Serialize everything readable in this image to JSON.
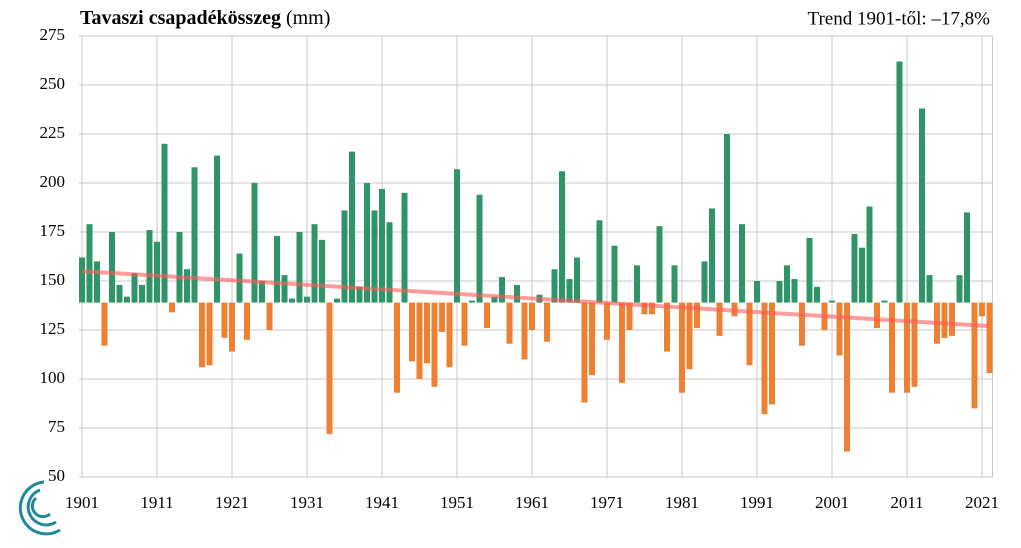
{
  "chart_data": {
    "type": "bar",
    "title": "Tavaszi csapadékösszeg",
    "title_unit": "(mm)",
    "annotation": "Trend 1901-től: –17,8%",
    "x": [
      1901,
      1902,
      1903,
      1904,
      1905,
      1906,
      1907,
      1908,
      1909,
      1910,
      1911,
      1912,
      1913,
      1914,
      1915,
      1916,
      1917,
      1918,
      1919,
      1920,
      1921,
      1922,
      1923,
      1924,
      1925,
      1926,
      1927,
      1928,
      1929,
      1930,
      1931,
      1932,
      1933,
      1934,
      1935,
      1936,
      1937,
      1938,
      1939,
      1940,
      1941,
      1942,
      1943,
      1944,
      1945,
      1946,
      1947,
      1948,
      1949,
      1950,
      1951,
      1952,
      1953,
      1954,
      1955,
      1956,
      1957,
      1958,
      1959,
      1960,
      1961,
      1962,
      1963,
      1964,
      1965,
      1966,
      1967,
      1968,
      1969,
      1970,
      1971,
      1972,
      1973,
      1974,
      1975,
      1976,
      1977,
      1978,
      1979,
      1980,
      1981,
      1982,
      1983,
      1984,
      1985,
      1986,
      1987,
      1988,
      1989,
      1990,
      1991,
      1992,
      1993,
      1994,
      1995,
      1996,
      1997,
      1998,
      1999,
      2000,
      2001,
      2002,
      2003,
      2004,
      2005,
      2006,
      2007,
      2008,
      2009,
      2010,
      2011,
      2012,
      2013,
      2014,
      2015,
      2016,
      2017,
      2018,
      2019,
      2020,
      2021,
      2022
    ],
    "values": [
      162,
      179,
      160,
      117,
      175,
      148,
      142,
      154,
      148,
      176,
      170,
      220,
      134,
      175,
      156,
      208,
      106,
      107,
      214,
      121,
      114,
      164,
      120,
      200,
      150,
      125,
      173,
      153,
      141,
      175,
      142,
      179,
      171,
      72,
      141,
      186,
      216,
      147,
      200,
      186,
      197,
      180,
      93,
      195,
      109,
      100,
      108,
      96,
      124,
      106,
      207,
      117,
      140,
      194,
      126,
      142,
      152,
      118,
      148,
      110,
      125,
      143,
      119,
      156,
      206,
      151,
      162,
      88,
      102,
      181,
      120,
      168,
      98,
      125,
      158,
      133,
      133,
      178,
      114,
      158,
      93,
      105,
      126,
      160,
      187,
      122,
      225,
      132,
      179,
      107,
      150,
      82,
      87,
      150,
      158,
      151,
      117,
      172,
      147,
      125,
      140,
      112,
      63,
      174,
      167,
      188,
      126,
      140,
      93,
      262,
      93,
      96,
      238,
      153,
      118,
      121,
      122,
      153,
      185,
      85,
      132,
      103
    ],
    "baseline": 139,
    "colors": {
      "above": "#2f9467",
      "below": "#ee8033"
    },
    "trend": {
      "x": [
        1901,
        2022
      ],
      "values": [
        155,
        127
      ],
      "color": "#ff5a5a"
    },
    "xlim": [
      1900.6,
      2022.4
    ],
    "xticks": [
      1901,
      1911,
      1921,
      1931,
      1941,
      1951,
      1961,
      1971,
      1981,
      1991,
      2001,
      2011,
      2021
    ],
    "ylim": [
      50,
      275
    ],
    "yticks": [
      50,
      75,
      100,
      125,
      150,
      175,
      200,
      225,
      250,
      275
    ],
    "grid": true
  }
}
